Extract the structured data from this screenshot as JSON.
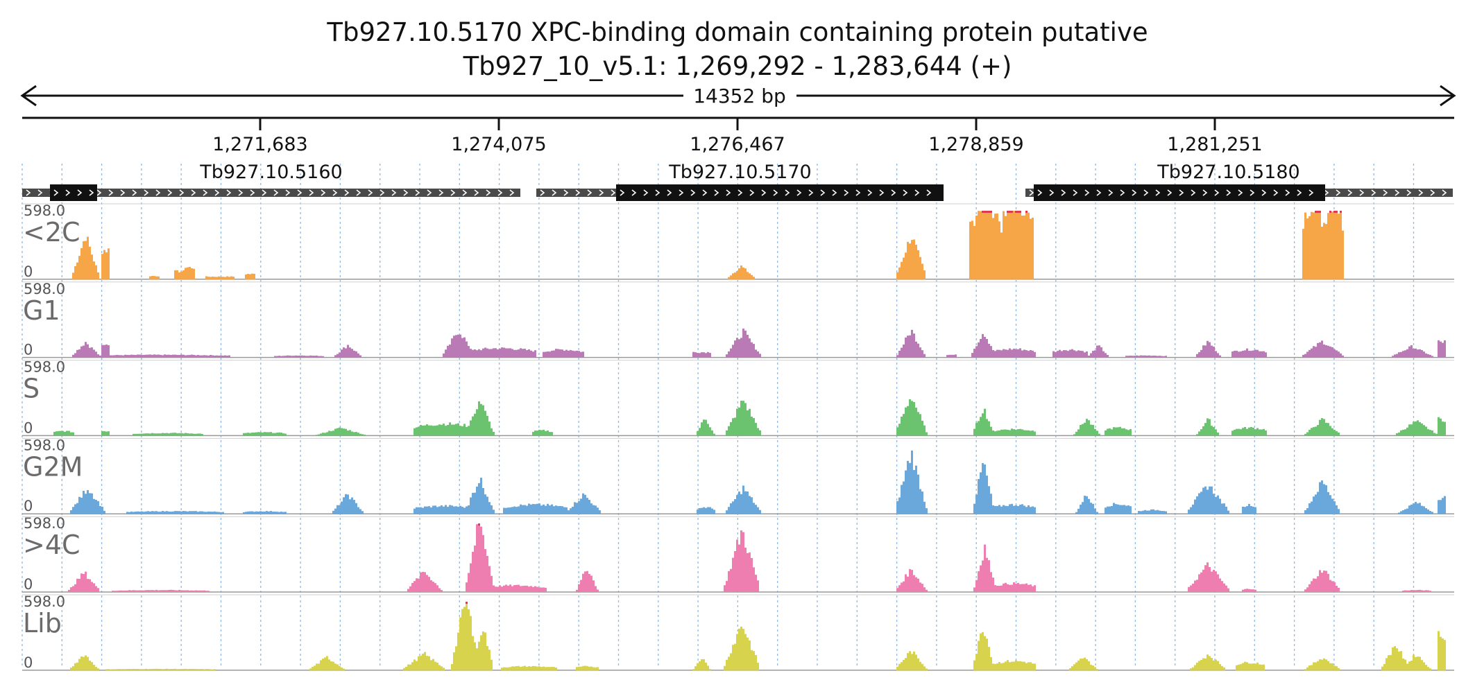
{
  "header": {
    "title": "Tb927.10.5170  XPC-binding domain containing protein  putative",
    "location": "Tb927_10_v5.1: 1,269,292 - 1,283,644 (+)"
  },
  "ruler": {
    "length_label": "14352 bp",
    "ticks": [
      "1,271,683",
      "1,274,075",
      "1,276,467",
      "1,278,859",
      "1,281,251"
    ]
  },
  "genes": [
    {
      "label": "Tb927.10.5160"
    },
    {
      "label": "Tb927.10.5170"
    },
    {
      "label": "Tb927.10.5180"
    }
  ],
  "tracks": [
    {
      "name": "<2C",
      "max": "598.0",
      "min": "0",
      "color": "#f7a647"
    },
    {
      "name": "G1",
      "max": "598.0",
      "min": "0",
      "color": "#b97ab6"
    },
    {
      "name": "S",
      "max": "598.0",
      "min": "0",
      "color": "#6cc36f"
    },
    {
      "name": "G2M",
      "max": "598.0",
      "min": "0",
      "color": "#6aa8dc"
    },
    {
      "name": ">4C",
      "max": "598.0",
      "min": "0",
      "color": "#ef7eb0"
    },
    {
      "name": "Lib",
      "max": "598.0",
      "min": "0",
      "color": "#d8d34c"
    }
  ]
}
